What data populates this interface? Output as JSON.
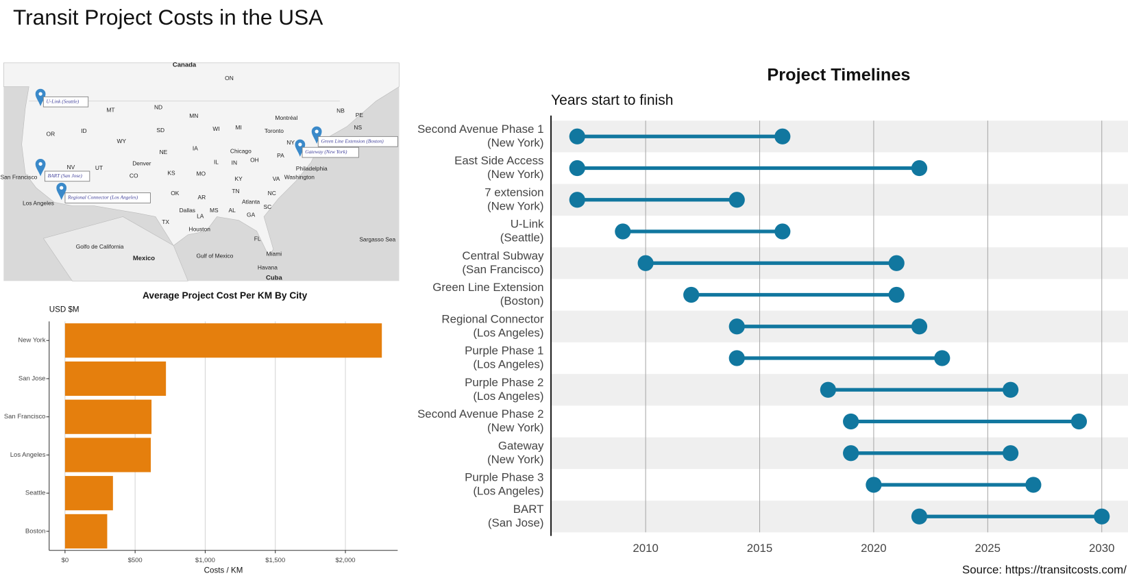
{
  "title": "Transit Project Costs in the USA",
  "map": {
    "labels": [
      "Canada",
      "ON",
      "MT",
      "ND",
      "MN",
      "Montréal",
      "NB",
      "PE",
      "NS",
      "OR",
      "ID",
      "WY",
      "SD",
      "WI",
      "MI",
      "Toronto",
      "NE",
      "IA",
      "Chicago",
      "NY",
      "PA",
      "NV",
      "UT",
      "Denver",
      "CO",
      "KS",
      "MO",
      "IL",
      "IN",
      "OH",
      "KY",
      "VA",
      "Philadelphia",
      "Washington",
      "San Francisco",
      "OK",
      "AR",
      "TN",
      "NC",
      "Atlanta",
      "SC",
      "Los Angeles",
      "Dallas",
      "MS",
      "AL",
      "GA",
      "LA",
      "TX",
      "Houston",
      "FL",
      "Golfo de California",
      "Gulf of Mexico",
      "Mexico",
      "Miami",
      "Havana",
      "Cuba",
      "Sargasso Sea"
    ],
    "popups": [
      "U-Link (Seattle)",
      "BART (San Jose)",
      "Regional Connector (Los Angeles)",
      "Gateway (New York)",
      "Green Line Extension (Boston)"
    ]
  },
  "chart_data": [
    {
      "type": "bar",
      "orientation": "horizontal",
      "title": "Average Project Cost Per KM By City",
      "y_label": "USD $M",
      "x_label": "Costs / KM",
      "categories": [
        "New York",
        "San Jose",
        "San Francisco",
        "Los Angeles",
        "Seattle",
        "Boston"
      ],
      "values": [
        2260,
        720,
        617,
        612,
        342,
        301
      ],
      "color": "#e57f0d",
      "xlim": [
        -113,
        2373
      ],
      "xticks": [
        {
          "value": 0,
          "label": "$0"
        },
        {
          "value": 500,
          "label": "$500"
        },
        {
          "value": 1000,
          "label": "$1,000"
        },
        {
          "value": 1500,
          "label": "$1,500"
        },
        {
          "value": 2000,
          "label": "$2,000"
        }
      ],
      "grid": true
    },
    {
      "type": "dumbbell",
      "title": "Project Timelines",
      "subtitle": "Years start to finish",
      "caption": "Source: https://transitcosts.com/",
      "categories": [
        [
          "Second Avenue Phase 1",
          "(New York)"
        ],
        [
          "East Side Access",
          "(New York)"
        ],
        [
          "7 extension",
          "(New York)"
        ],
        [
          "U-Link",
          "(Seattle)"
        ],
        [
          "Central Subway",
          "(San Francisco)"
        ],
        [
          "Green Line Extension",
          "(Boston)"
        ],
        [
          "Regional Connector",
          "(Los Angeles)"
        ],
        [
          "Purple Phase 1",
          "(Los Angeles)"
        ],
        [
          "Purple Phase 2",
          "(Los Angeles)"
        ],
        [
          "Second Avenue Phase 2",
          "(New York)"
        ],
        [
          "Gateway",
          "(New York)"
        ],
        [
          "Purple Phase 3",
          "(Los Angeles)"
        ],
        [
          "BART",
          "(San Jose)"
        ]
      ],
      "series": [
        {
          "color": "#11779f",
          "values": [
            2007,
            2007,
            2007,
            2009,
            2010,
            2012,
            2014,
            2014,
            2018,
            2019,
            2019,
            2020,
            2022
          ]
        },
        {
          "color": "#11779f",
          "values": [
            2016,
            2022,
            2014,
            2016,
            2021,
            2021,
            2022,
            2023,
            2026,
            2029,
            2026,
            2027,
            2030
          ]
        }
      ],
      "xlim": [
        2005.85,
        2031.15
      ],
      "xticks": [
        2010,
        2015,
        2020,
        2025,
        2030
      ],
      "grid": true
    }
  ]
}
